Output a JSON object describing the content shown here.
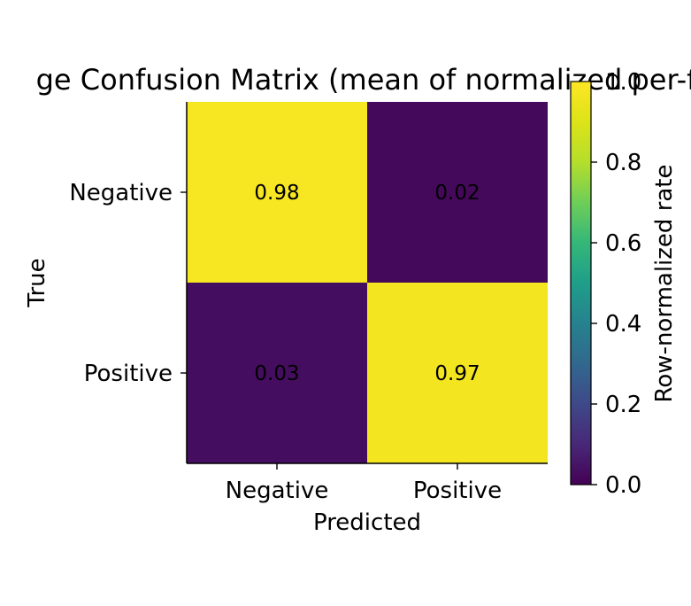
{
  "chart_data": {
    "type": "heatmap",
    "title": "ge Confusion Matrix (mean of normalized per-f",
    "xlabel": "Predicted",
    "ylabel": "True",
    "x_categories": [
      "Negative",
      "Positive"
    ],
    "y_categories": [
      "Negative",
      "Positive"
    ],
    "values": [
      [
        0.98,
        0.02
      ],
      [
        0.03,
        0.97
      ]
    ],
    "value_labels": [
      [
        "0.98",
        "0.02"
      ],
      [
        "0.03",
        "0.97"
      ]
    ],
    "colorbar": {
      "label": "Row-normalized rate",
      "range": [
        0,
        1
      ],
      "ticks": [
        0.0,
        0.2,
        0.4,
        0.6,
        0.8,
        1.0
      ],
      "tick_labels": [
        "0.0",
        "0.2",
        "0.4",
        "0.6",
        "0.8",
        "1.0"
      ],
      "colormap": "viridis"
    },
    "grid": false
  }
}
